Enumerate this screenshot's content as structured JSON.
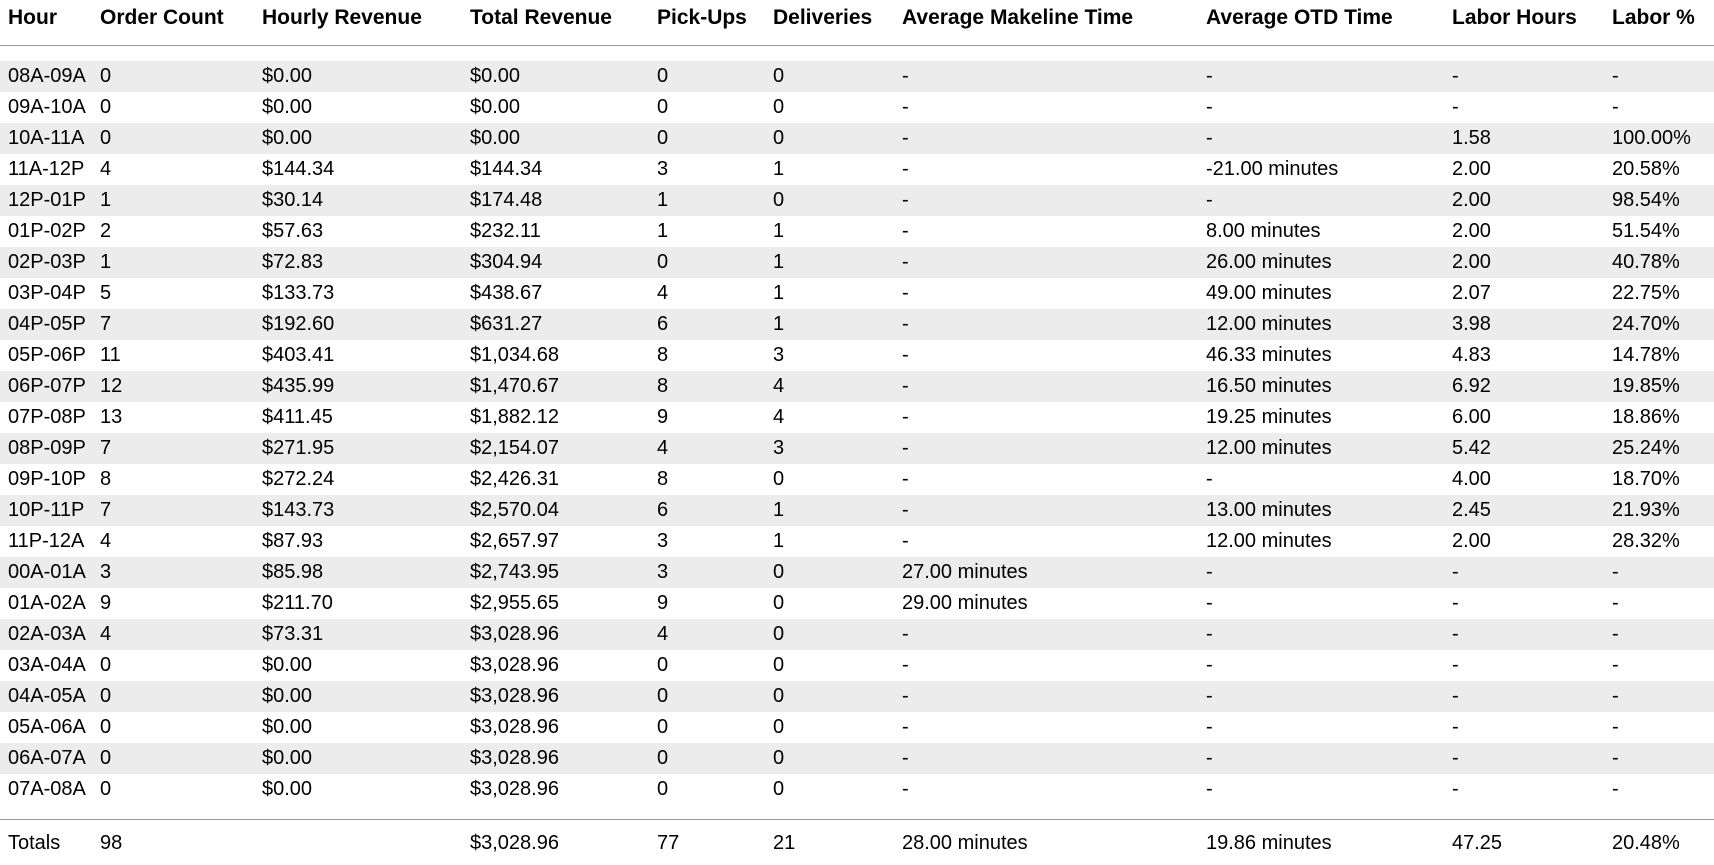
{
  "table": {
    "columns": [
      {
        "key": "hour",
        "label": "Hour"
      },
      {
        "key": "order_count",
        "label": "Order Count"
      },
      {
        "key": "hourly_revenue",
        "label": "Hourly Revenue"
      },
      {
        "key": "total_revenue",
        "label": "Total Revenue"
      },
      {
        "key": "pick_ups",
        "label": "Pick-Ups"
      },
      {
        "key": "deliveries",
        "label": "Deliveries"
      },
      {
        "key": "avg_makeline_time",
        "label": "Average Makeline Time"
      },
      {
        "key": "avg_otd_time",
        "label": "Average OTD Time"
      },
      {
        "key": "labor_hours",
        "label": "Labor Hours"
      },
      {
        "key": "labor_pct",
        "label": "Labor %"
      }
    ],
    "rows": [
      [
        "08A-09A",
        "0",
        "$0.00",
        "$0.00",
        "0",
        "0",
        "-",
        "-",
        "-",
        "-"
      ],
      [
        "09A-10A",
        "0",
        "$0.00",
        "$0.00",
        "0",
        "0",
        "-",
        "-",
        "-",
        "-"
      ],
      [
        "10A-11A",
        "0",
        "$0.00",
        "$0.00",
        "0",
        "0",
        "-",
        "-",
        "1.58",
        "100.00%"
      ],
      [
        "11A-12P",
        "4",
        "$144.34",
        "$144.34",
        "3",
        "1",
        "-",
        "-21.00 minutes",
        "2.00",
        "20.58%"
      ],
      [
        "12P-01P",
        "1",
        "$30.14",
        "$174.48",
        "1",
        "0",
        "-",
        "-",
        "2.00",
        "98.54%"
      ],
      [
        "01P-02P",
        "2",
        "$57.63",
        "$232.11",
        "1",
        "1",
        "-",
        "8.00 minutes",
        "2.00",
        "51.54%"
      ],
      [
        "02P-03P",
        "1",
        "$72.83",
        "$304.94",
        "0",
        "1",
        "-",
        "26.00 minutes",
        "2.00",
        "40.78%"
      ],
      [
        "03P-04P",
        "5",
        "$133.73",
        "$438.67",
        "4",
        "1",
        "-",
        "49.00 minutes",
        "2.07",
        "22.75%"
      ],
      [
        "04P-05P",
        "7",
        "$192.60",
        "$631.27",
        "6",
        "1",
        "-",
        "12.00 minutes",
        "3.98",
        "24.70%"
      ],
      [
        "05P-06P",
        "11",
        "$403.41",
        "$1,034.68",
        "8",
        "3",
        "-",
        "46.33 minutes",
        "4.83",
        "14.78%"
      ],
      [
        "06P-07P",
        "12",
        "$435.99",
        "$1,470.67",
        "8",
        "4",
        "-",
        "16.50 minutes",
        "6.92",
        "19.85%"
      ],
      [
        "07P-08P",
        "13",
        "$411.45",
        "$1,882.12",
        "9",
        "4",
        "-",
        "19.25 minutes",
        "6.00",
        "18.86%"
      ],
      [
        "08P-09P",
        "7",
        "$271.95",
        "$2,154.07",
        "4",
        "3",
        "-",
        "12.00 minutes",
        "5.42",
        "25.24%"
      ],
      [
        "09P-10P",
        "8",
        "$272.24",
        "$2,426.31",
        "8",
        "0",
        "-",
        "-",
        "4.00",
        "18.70%"
      ],
      [
        "10P-11P",
        "7",
        "$143.73",
        "$2,570.04",
        "6",
        "1",
        "-",
        "13.00 minutes",
        "2.45",
        "21.93%"
      ],
      [
        "11P-12A",
        "4",
        "$87.93",
        "$2,657.97",
        "3",
        "1",
        "-",
        "12.00 minutes",
        "2.00",
        "28.32%"
      ],
      [
        "00A-01A",
        "3",
        "$85.98",
        "$2,743.95",
        "3",
        "0",
        "27.00 minutes",
        "-",
        "-",
        "-"
      ],
      [
        "01A-02A",
        "9",
        "$211.70",
        "$2,955.65",
        "9",
        "0",
        "29.00 minutes",
        "-",
        "-",
        "-"
      ],
      [
        "02A-03A",
        "4",
        "$73.31",
        "$3,028.96",
        "4",
        "0",
        "-",
        "-",
        "-",
        "-"
      ],
      [
        "03A-04A",
        "0",
        "$0.00",
        "$3,028.96",
        "0",
        "0",
        "-",
        "-",
        "-",
        "-"
      ],
      [
        "04A-05A",
        "0",
        "$0.00",
        "$3,028.96",
        "0",
        "0",
        "-",
        "-",
        "-",
        "-"
      ],
      [
        "05A-06A",
        "0",
        "$0.00",
        "$3,028.96",
        "0",
        "0",
        "-",
        "-",
        "-",
        "-"
      ],
      [
        "06A-07A",
        "0",
        "$0.00",
        "$3,028.96",
        "0",
        "0",
        "-",
        "-",
        "-",
        "-"
      ],
      [
        "07A-08A",
        "0",
        "$0.00",
        "$3,028.96",
        "0",
        "0",
        "-",
        "-",
        "-",
        "-"
      ]
    ],
    "totals": [
      "Totals",
      "98",
      "",
      "$3,028.96",
      "77",
      "21",
      "28.00 minutes",
      "19.86 minutes",
      "47.25",
      "20.48%"
    ]
  },
  "colors": {
    "background": "#ffffff",
    "text": "#000000",
    "stripe": "#ececec",
    "rule": "#999999"
  }
}
